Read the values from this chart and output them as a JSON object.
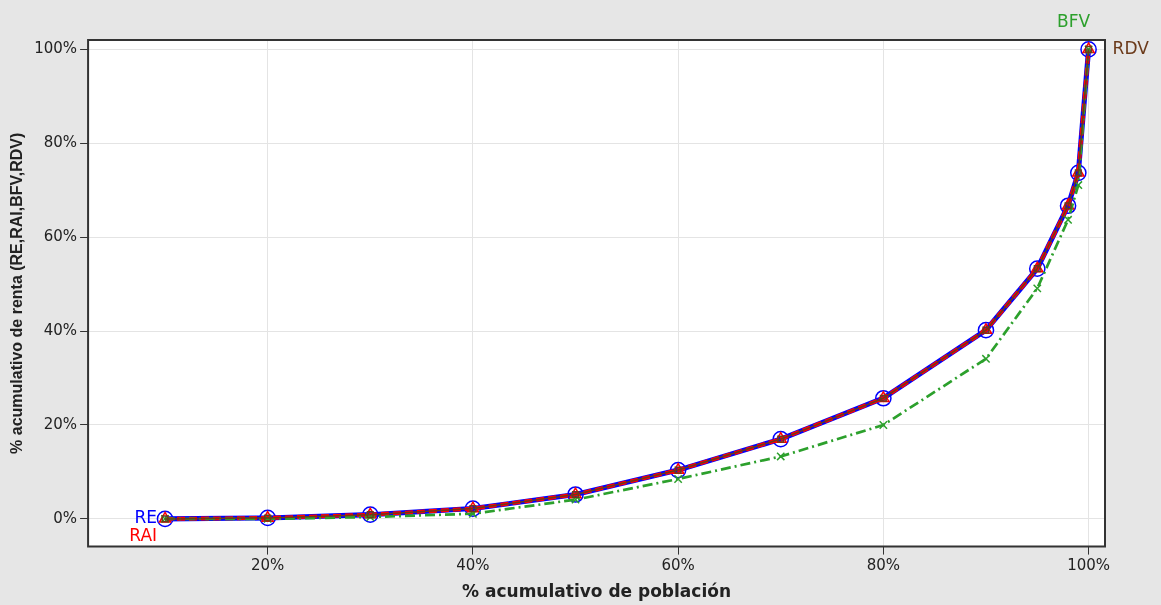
{
  "chart_data": {
    "type": "line",
    "xlabel": "% acumulativo de población",
    "ylabel": "% acumulativo de renta (RE,RAI,BFV,RDV)",
    "x": [
      10,
      20,
      30,
      40,
      50,
      60,
      70,
      80,
      90,
      95,
      98,
      99,
      100
    ],
    "series": [
      {
        "name": "RE",
        "color": "#0000ff",
        "marker": "circle",
        "line_style": "solid",
        "values": [
          0,
          0.2,
          0.9,
          2.2,
          5.2,
          10.4,
          17,
          25.7,
          40.2,
          53.3,
          66.7,
          73.7,
          100
        ]
      },
      {
        "name": "RAI",
        "color": "#ff0000",
        "marker": "triangle",
        "line_style": "dashed",
        "values": [
          0,
          0.2,
          0.9,
          2.2,
          5.2,
          10.4,
          17,
          25.7,
          40.2,
          53.3,
          66.7,
          73.7,
          100
        ]
      },
      {
        "name": "BFV",
        "color": "#2ca02c",
        "marker": "cross",
        "line_style": "dashdot",
        "values": [
          0,
          0,
          0.4,
          1.1,
          4.1,
          8.5,
          13.3,
          20,
          34.1,
          49.1,
          63.7,
          71.1,
          100
        ]
      },
      {
        "name": "RDV",
        "color": "#6b3a1a",
        "marker": "square",
        "line_style": "solid",
        "values": [
          0,
          0.2,
          0.9,
          2.2,
          5.2,
          10.4,
          17,
          25.7,
          40.2,
          53.3,
          66.7,
          73.7,
          100
        ]
      }
    ],
    "xlim": [
      2.5,
      101.6
    ],
    "ylim": [
      -5.9,
      102
    ],
    "xticks": [
      {
        "value": 20,
        "label": "20%"
      },
      {
        "value": 40,
        "label": "40%"
      },
      {
        "value": 60,
        "label": "60%"
      },
      {
        "value": 80,
        "label": "80%"
      },
      {
        "value": 100,
        "label": "100%"
      }
    ],
    "yticks": [
      {
        "value": 0,
        "label": "0%"
      },
      {
        "value": 20,
        "label": "20%"
      },
      {
        "value": 40,
        "label": "40%"
      },
      {
        "value": 60,
        "label": "60%"
      },
      {
        "value": 80,
        "label": "80%"
      },
      {
        "value": 100,
        "label": "100%"
      }
    ],
    "grid": true,
    "legend": false
  }
}
